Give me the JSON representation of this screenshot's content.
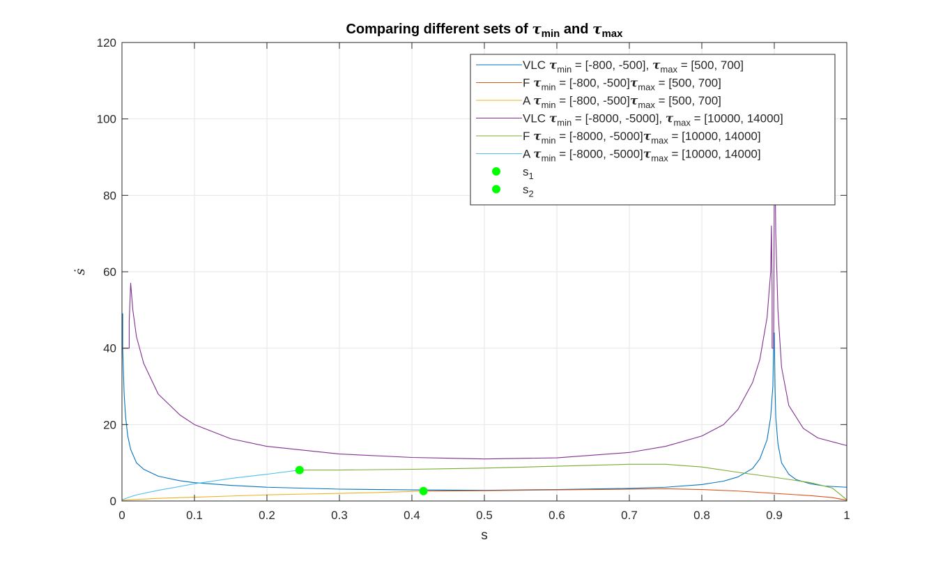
{
  "chart_data": {
    "type": "line",
    "title_parts": [
      "Comparing  different  sets  of  ",
      "τ",
      "min",
      "  and  ",
      "τ",
      "max"
    ],
    "xlabel": "s",
    "ylabel": "ṡ",
    "xlim": [
      0,
      1
    ],
    "ylim": [
      0,
      120
    ],
    "xticks": [
      0,
      0.1,
      0.2,
      0.3,
      0.4,
      0.5,
      0.6,
      0.7,
      0.8,
      0.9,
      1
    ],
    "xtick_labels": [
      "0",
      "0.1",
      "0.2",
      "0.3",
      "0.4",
      "0.5",
      "0.6",
      "0.7",
      "0.8",
      "0.9",
      "1"
    ],
    "yticks": [
      0,
      20,
      40,
      60,
      80,
      100,
      120
    ],
    "ytick_labels": [
      "0",
      "20",
      "40",
      "60",
      "80",
      "100",
      "120"
    ],
    "grid": true,
    "legend_position": "top-right",
    "series": [
      {
        "name": "VLC  τmin  =  [-800,  -500],  τmax  =  [500,  700]",
        "legend_parts": [
          "VLC  ",
          "τ",
          "min",
          "  =  [-800,  -500],  ",
          "τ",
          "max",
          "  =  [500,  700]"
        ],
        "color": "#0072BD",
        "x": [
          0,
          0.001,
          0.001,
          0.002,
          0.003,
          0.005,
          0.008,
          0.012,
          0.02,
          0.03,
          0.05,
          0.08,
          0.1,
          0.15,
          0.2,
          0.3,
          0.4,
          0.5,
          0.6,
          0.7,
          0.75,
          0.8,
          0.83,
          0.85,
          0.87,
          0.88,
          0.89,
          0.895,
          0.898,
          0.899,
          0.899,
          0.9,
          0.901,
          0.902,
          0.905,
          0.91,
          0.92,
          0.93,
          0.95,
          0.97,
          1.0
        ],
        "y": [
          49,
          49,
          40,
          34,
          28,
          22,
          17,
          13.5,
          10,
          8.3,
          6.5,
          5.3,
          4.8,
          4.1,
          3.6,
          3.1,
          2.9,
          2.8,
          3.0,
          3.3,
          3.6,
          4.3,
          5.2,
          6.3,
          8.5,
          11,
          16,
          22,
          30,
          40,
          44,
          44,
          30,
          22,
          15,
          10,
          7,
          5.6,
          4.5,
          3.9,
          3.6
        ]
      },
      {
        "name": "F  τmin  =  [-800,  -500]τmax  =  [500,  700]",
        "legend_parts": [
          "F  ",
          "τ",
          "min",
          "  =  [-800,  -500]",
          "τ",
          "max",
          "  =  [500,  700]"
        ],
        "color": "#D95319",
        "x": [
          0.416,
          0.5,
          0.6,
          0.7,
          0.75,
          0.8,
          0.85,
          0.9,
          0.95,
          0.98,
          1.0
        ],
        "y": [
          2.6,
          2.7,
          2.9,
          3.1,
          3.2,
          3.0,
          2.6,
          2.0,
          1.4,
          0.9,
          0.2
        ]
      },
      {
        "name": "A  τmin  =  [-800,  -500]τmax  =  [500,  700]",
        "legend_parts": [
          "A  ",
          "τ",
          "min",
          "  =  [-800,  -500]",
          "τ",
          "max",
          "  =  [500,  700]"
        ],
        "color": "#EDB120",
        "x": [
          0,
          0.02,
          0.05,
          0.1,
          0.15,
          0.2,
          0.25,
          0.3,
          0.35,
          0.4,
          0.416
        ],
        "y": [
          0.2,
          0.4,
          0.7,
          1.0,
          1.3,
          1.6,
          1.8,
          2.0,
          2.2,
          2.5,
          2.6
        ]
      },
      {
        "name": "VLC  τmin  =  [-8000,  -5000],  τmax  =  [10000,  14000]",
        "legend_parts": [
          "VLC  ",
          "τ",
          "min",
          "  =  [-8000,  -5000],  ",
          "τ",
          "max",
          "  =  [10000,  14000]"
        ],
        "color": "#7E2F8E",
        "x": [
          0,
          0.01,
          0.01,
          0.012,
          0.015,
          0.02,
          0.03,
          0.05,
          0.08,
          0.1,
          0.15,
          0.2,
          0.3,
          0.4,
          0.5,
          0.6,
          0.7,
          0.75,
          0.8,
          0.83,
          0.85,
          0.87,
          0.88,
          0.89,
          0.895,
          0.896,
          0.897,
          0.897,
          0.899,
          0.9,
          0.901,
          0.902,
          0.905,
          0.91,
          0.92,
          0.94,
          0.96,
          1.0
        ],
        "y": [
          40,
          40,
          47,
          57,
          50,
          43,
          36,
          28,
          22.5,
          20,
          16.3,
          14.3,
          12.3,
          11.4,
          11.0,
          11.3,
          12.7,
          14.3,
          17,
          20,
          24,
          31,
          37,
          48,
          60,
          72,
          55,
          40,
          40,
          84,
          88,
          70,
          50,
          35,
          25,
          19,
          16.5,
          14.5
        ]
      },
      {
        "name": "F  τmin  =  [-8000,  -5000]τmax  =  [10000,  14000]",
        "legend_parts": [
          "F  ",
          "τ",
          "min",
          "  =  [-8000,  -5000]",
          "τ",
          "max",
          "  =  [10000,  14000]"
        ],
        "color": "#77AC30",
        "x": [
          0.245,
          0.3,
          0.4,
          0.5,
          0.6,
          0.7,
          0.75,
          0.8,
          0.85,
          0.9,
          0.95,
          0.98,
          1.0
        ],
        "y": [
          8.1,
          8.1,
          8.3,
          8.6,
          9.1,
          9.6,
          9.6,
          8.9,
          7.5,
          6.2,
          4.8,
          3.4,
          0.3
        ]
      },
      {
        "name": "A  τmin  =  [-8000,  -5000]τmax  =  [10000,  14000]",
        "legend_parts": [
          "A  ",
          "τ",
          "min",
          "  =  [-8000,  -5000]",
          "τ",
          "max",
          "  =  [10000,  14000]"
        ],
        "color": "#4DBEEE",
        "x": [
          0,
          0.01,
          0.02,
          0.05,
          0.1,
          0.15,
          0.2,
          0.245
        ],
        "y": [
          0.3,
          1.0,
          1.6,
          2.8,
          4.5,
          5.9,
          7.0,
          8.1
        ]
      }
    ],
    "markers": [
      {
        "name": "s1",
        "legend_parts": [
          "s",
          "1"
        ],
        "color": "#00FF00",
        "x": 0.416,
        "y": 2.6
      },
      {
        "name": "s2",
        "legend_parts": [
          "s",
          "2"
        ],
        "color": "#00FF00",
        "x": 0.245,
        "y": 8.1
      }
    ]
  }
}
